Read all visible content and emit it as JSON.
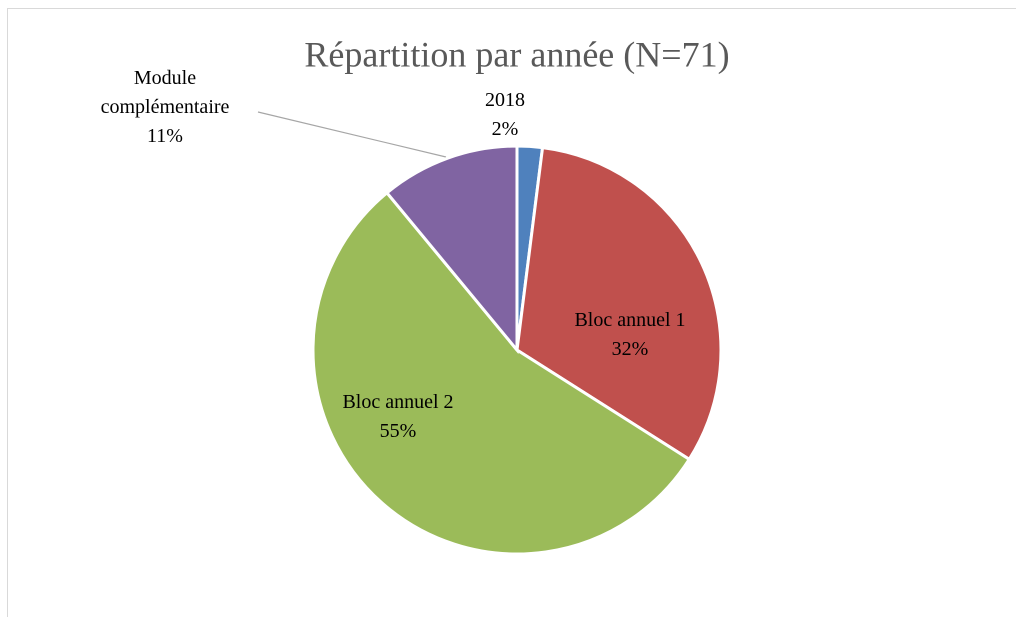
{
  "chart_data": {
    "type": "pie",
    "title": "Répartition par année (N=71)",
    "categories": [
      "2018",
      "Bloc annuel 1",
      "Bloc annuel 2",
      "Module complémentaire"
    ],
    "values": [
      2,
      32,
      55,
      11
    ],
    "value_labels": [
      "2%",
      "32%",
      "55%",
      "11%"
    ],
    "colors": [
      "#4f81bd",
      "#c0504d",
      "#9bbb59",
      "#8064a2"
    ]
  }
}
